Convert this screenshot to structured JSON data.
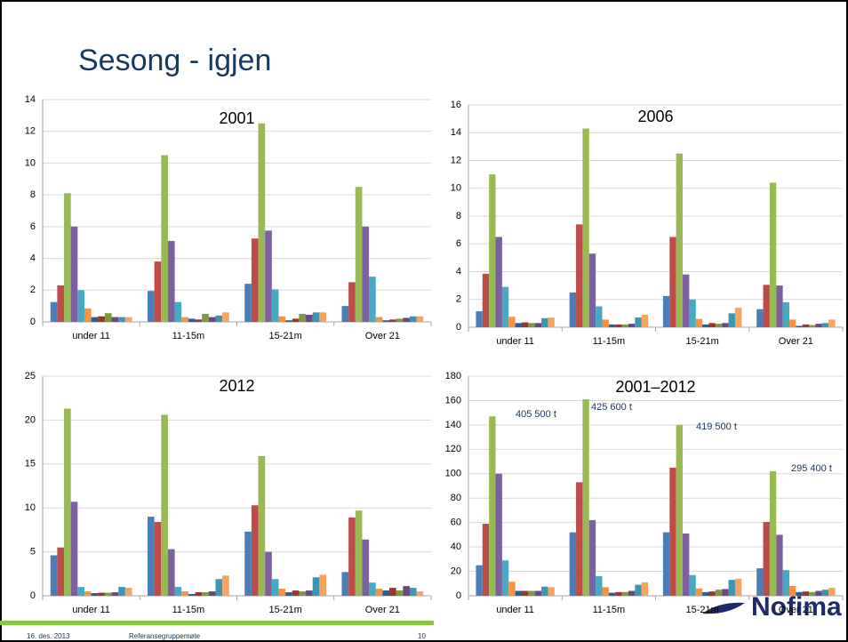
{
  "header": {
    "title": "Sesong - igjen"
  },
  "footer": {
    "date": "16. des. 2013",
    "meeting": "Referansegruppemøte",
    "page": "10"
  },
  "logo": "Nofima",
  "chart_data": [
    {
      "type": "bar",
      "title": "2001",
      "categories": [
        "under 11",
        "11-15m",
        "15-21m",
        "Over 21"
      ],
      "ylim": [
        0,
        14
      ],
      "yticks": [
        0,
        2,
        4,
        6,
        8,
        10,
        12,
        14
      ],
      "grid": true,
      "series": [
        {
          "color": "#4a7ebb",
          "values": [
            1.25,
            1.95,
            2.4,
            1.0
          ]
        },
        {
          "color": "#be4b48",
          "values": [
            2.3,
            3.8,
            5.25,
            2.5
          ]
        },
        {
          "color": "#98b954",
          "values": [
            8.1,
            10.5,
            12.5,
            8.5
          ]
        },
        {
          "color": "#7d60a0",
          "values": [
            6.0,
            5.1,
            5.75,
            6.0
          ]
        },
        {
          "color": "#46aac5",
          "values": [
            2.0,
            1.25,
            2.05,
            2.85
          ]
        },
        {
          "color": "#f69240",
          "values": [
            0.85,
            0.3,
            0.35,
            0.3
          ]
        },
        {
          "color": "#2c5d98",
          "values": [
            0.3,
            0.2,
            0.1,
            0.1
          ]
        },
        {
          "color": "#9c3432",
          "values": [
            0.35,
            0.15,
            0.2,
            0.15
          ]
        },
        {
          "color": "#7e9a3c",
          "values": [
            0.55,
            0.5,
            0.5,
            0.2
          ]
        },
        {
          "color": "#664a86",
          "values": [
            0.3,
            0.3,
            0.45,
            0.25
          ]
        },
        {
          "color": "#3b97b1",
          "values": [
            0.3,
            0.4,
            0.6,
            0.35
          ]
        },
        {
          "color": "#f7a55e",
          "values": [
            0.3,
            0.6,
            0.6,
            0.35
          ]
        }
      ]
    },
    {
      "type": "bar",
      "title": "2006",
      "categories": [
        "under 11",
        "11-15m",
        "15-21m",
        "Over 21"
      ],
      "ylim": [
        0,
        16
      ],
      "yticks": [
        0,
        2,
        4,
        6,
        8,
        10,
        12,
        14,
        16
      ],
      "grid": true,
      "series": [
        {
          "color": "#4a7ebb",
          "values": [
            1.15,
            2.5,
            2.25,
            1.3
          ]
        },
        {
          "color": "#be4b48",
          "values": [
            3.85,
            7.4,
            6.5,
            3.05
          ]
        },
        {
          "color": "#98b954",
          "values": [
            11.0,
            14.3,
            12.5,
            10.4
          ]
        },
        {
          "color": "#7d60a0",
          "values": [
            6.5,
            5.3,
            3.8,
            3.0
          ]
        },
        {
          "color": "#46aac5",
          "values": [
            2.9,
            1.5,
            2.0,
            1.8
          ]
        },
        {
          "color": "#f69240",
          "values": [
            0.75,
            0.55,
            0.6,
            0.55
          ]
        },
        {
          "color": "#2c5d98",
          "values": [
            0.3,
            0.2,
            0.2,
            0.1
          ]
        },
        {
          "color": "#9c3432",
          "values": [
            0.35,
            0.2,
            0.3,
            0.2
          ]
        },
        {
          "color": "#7e9a3c",
          "values": [
            0.3,
            0.2,
            0.25,
            0.15
          ]
        },
        {
          "color": "#664a86",
          "values": [
            0.3,
            0.25,
            0.3,
            0.25
          ]
        },
        {
          "color": "#3b97b1",
          "values": [
            0.65,
            0.7,
            1.0,
            0.3
          ]
        },
        {
          "color": "#f7a55e",
          "values": [
            0.7,
            0.9,
            1.4,
            0.55
          ]
        }
      ]
    },
    {
      "type": "bar",
      "title": "2012",
      "categories": [
        "under 11",
        "11-15m",
        "15-21m",
        "Over 21"
      ],
      "ylim": [
        0,
        25
      ],
      "yticks": [
        0,
        5,
        10,
        15,
        20,
        25
      ],
      "grid": true,
      "series": [
        {
          "color": "#4a7ebb",
          "values": [
            4.6,
            9.0,
            7.3,
            2.7
          ]
        },
        {
          "color": "#be4b48",
          "values": [
            5.5,
            8.4,
            10.3,
            8.9
          ]
        },
        {
          "color": "#98b954",
          "values": [
            21.3,
            20.6,
            15.9,
            9.7
          ]
        },
        {
          "color": "#7d60a0",
          "values": [
            10.7,
            5.3,
            5.0,
            6.4
          ]
        },
        {
          "color": "#46aac5",
          "values": [
            1.0,
            1.0,
            1.9,
            1.5
          ]
        },
        {
          "color": "#f69240",
          "values": [
            0.5,
            0.5,
            0.8,
            0.8
          ]
        },
        {
          "color": "#2c5d98",
          "values": [
            0.3,
            0.2,
            0.4,
            0.6
          ]
        },
        {
          "color": "#9c3432",
          "values": [
            0.35,
            0.4,
            0.6,
            0.9
          ]
        },
        {
          "color": "#7e9a3c",
          "values": [
            0.35,
            0.4,
            0.5,
            0.6
          ]
        },
        {
          "color": "#664a86",
          "values": [
            0.4,
            0.5,
            0.6,
            1.1
          ]
        },
        {
          "color": "#3b97b1",
          "values": [
            1.0,
            1.9,
            2.1,
            0.9
          ]
        },
        {
          "color": "#f7a55e",
          "values": [
            0.9,
            2.3,
            2.4,
            0.5
          ]
        }
      ]
    },
    {
      "type": "bar",
      "title": "2001–2012",
      "categories": [
        "under 11",
        "11-15m",
        "15-21m",
        "Over 21"
      ],
      "ylim": [
        0,
        180
      ],
      "yticks": [
        0,
        20,
        40,
        60,
        80,
        100,
        120,
        140,
        160,
        180
      ],
      "grid": true,
      "annotations": [
        "405 500 t",
        "425 600 t",
        "419 500 t",
        "295 400 t"
      ],
      "series": [
        {
          "color": "#4a7ebb",
          "values": [
            25,
            52,
            52,
            22.5
          ]
        },
        {
          "color": "#be4b48",
          "values": [
            59,
            93,
            105,
            60.5
          ]
        },
        {
          "color": "#98b954",
          "values": [
            147,
            161,
            140,
            102
          ]
        },
        {
          "color": "#7d60a0",
          "values": [
            100,
            62,
            51,
            50
          ]
        },
        {
          "color": "#46aac5",
          "values": [
            29,
            16,
            17,
            21
          ]
        },
        {
          "color": "#f69240",
          "values": [
            11.5,
            7,
            6,
            8
          ]
        },
        {
          "color": "#2c5d98",
          "values": [
            4,
            2.5,
            3,
            3
          ]
        },
        {
          "color": "#9c3432",
          "values": [
            4,
            3,
            3.5,
            3.5
          ]
        },
        {
          "color": "#7e9a3c",
          "values": [
            4,
            3,
            5,
            3
          ]
        },
        {
          "color": "#664a86",
          "values": [
            4,
            4,
            5.5,
            4
          ]
        },
        {
          "color": "#3b97b1",
          "values": [
            7.5,
            9,
            13,
            5
          ]
        },
        {
          "color": "#f7a55e",
          "values": [
            7,
            11,
            14,
            6.5
          ]
        }
      ]
    }
  ]
}
